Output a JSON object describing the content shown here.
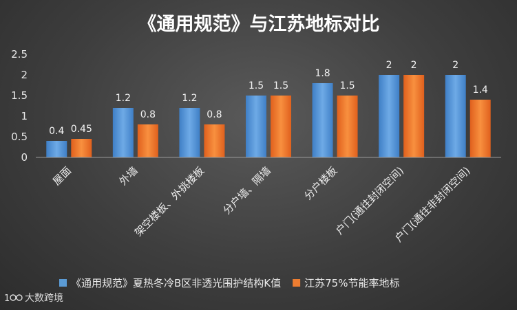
{
  "chart_data": {
    "type": "bar",
    "title": "《通用规范》与江苏地标对比",
    "categories": [
      "屋面",
      "外墙",
      "架空楼板、外挑楼板",
      "分户墙、隔墙",
      "分户楼板",
      "户门(通往封闭空间)",
      "户门(通往非封闭空间)"
    ],
    "series": [
      {
        "name": "《通用规范》夏热冬冷B区非透光围护结构K值",
        "values": [
          0.4,
          1.2,
          1.2,
          1.5,
          1.8,
          2,
          2
        ],
        "labels": [
          "0.4",
          "1.2",
          "1.2",
          "1.5",
          "1.8",
          "2",
          "2"
        ],
        "color": "#5b9bd5"
      },
      {
        "name": "江苏75%节能率地标",
        "values": [
          0.45,
          0.8,
          0.8,
          1.5,
          1.5,
          2,
          1.4
        ],
        "labels": [
          "0.45",
          "0.8",
          "0.8",
          "1.5",
          "1.5",
          "2",
          "1.4"
        ],
        "color": "#ed7d31"
      }
    ],
    "yticks": [
      "0",
      "0.5",
      "1",
      "1.5",
      "2",
      "2.5"
    ],
    "ylim": [
      0,
      2.5
    ],
    "grid": false,
    "legend": "bottom"
  },
  "watermark": {
    "text": "大数跨境",
    "icon": "logo-icon"
  }
}
